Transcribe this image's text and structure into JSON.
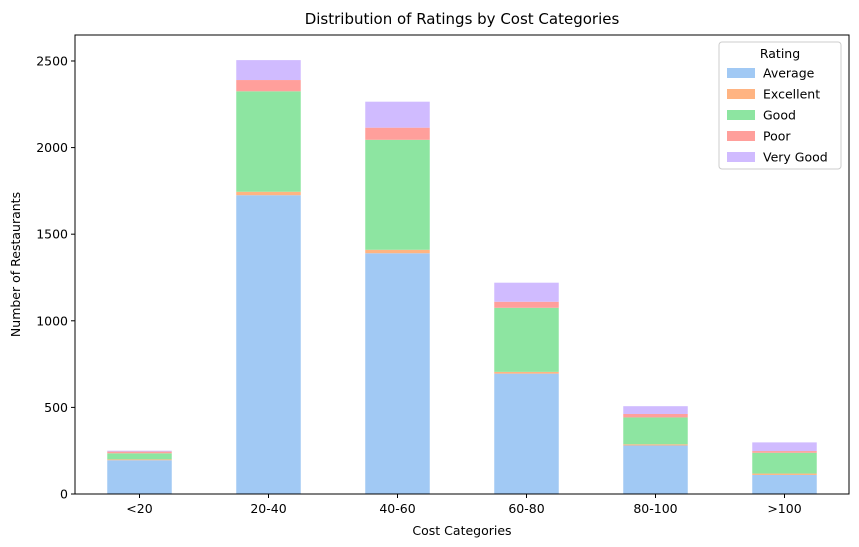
{
  "chart_data": {
    "type": "bar",
    "stacked": true,
    "title": "Distribution of Ratings by Cost Categories",
    "xlabel": "Cost Categories",
    "ylabel": "Number of Restaurants",
    "categories": [
      "<20",
      "20-40",
      "40-60",
      "60-80",
      "80-100",
      ">100"
    ],
    "ylim": [
      0,
      2650
    ],
    "yticks": [
      0,
      500,
      1000,
      1500,
      2000,
      2500
    ],
    "grid": false,
    "legend": {
      "title": "Rating",
      "placement": "top-right"
    },
    "series": [
      {
        "name": "Average",
        "color": "#a1c9f4",
        "values": [
          195,
          1725,
          1390,
          695,
          280,
          110
        ]
      },
      {
        "name": "Excellent",
        "color": "#ffb482",
        "values": [
          5,
          20,
          20,
          10,
          7,
          8
        ]
      },
      {
        "name": "Good",
        "color": "#8de5a1",
        "values": [
          35,
          580,
          635,
          370,
          155,
          120
        ]
      },
      {
        "name": "Poor",
        "color": "#ff9f9b",
        "values": [
          10,
          65,
          70,
          35,
          20,
          10
        ]
      },
      {
        "name": "Very Good",
        "color": "#d0bbff",
        "values": [
          5,
          115,
          150,
          110,
          45,
          50
        ]
      }
    ]
  }
}
